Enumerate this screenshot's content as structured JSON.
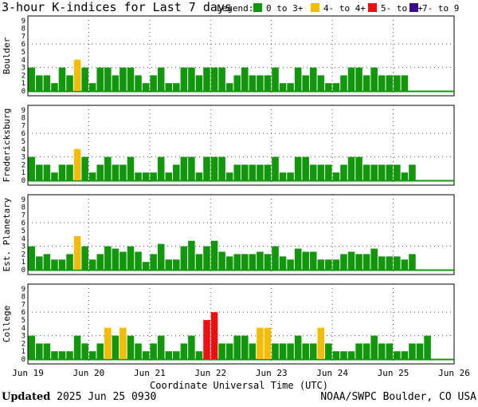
{
  "footer": {
    "updated_label": "Updated",
    "updated_value": "2025 Jun 25 0930",
    "source": "NOAA/SWPC Boulder, CO USA"
  },
  "colors": {
    "green": "#12960c",
    "yellow": "#f2bd00",
    "red": "#ee1010",
    "purple": "#3a0a8c",
    "gridline": "#555555"
  },
  "chart_data": {
    "type": "bar",
    "title": "3-hour K-indices for Last 7 days",
    "legend_label": "Legend:",
    "legend": [
      {
        "label": "0 to 3+",
        "color": "#12960c"
      },
      {
        "label": "4- to 4+",
        "color": "#f2bd00"
      },
      {
        "label": "5- to 6+",
        "color": "#ee1010"
      },
      {
        "label": "7- to 9",
        "color": "#3a0a8c"
      }
    ],
    "xlabel": "Coordinate Universal Time (UTC)",
    "x_ticks": [
      "Jun 19",
      "Jun 20",
      "Jun 21",
      "Jun 22",
      "Jun 23",
      "Jun 24",
      "Jun 25",
      "Jun 26"
    ],
    "ylim": [
      0,
      9
    ],
    "y_ticks": [
      "0",
      "1",
      "2",
      "3",
      "4",
      "5",
      "6",
      "7",
      "8",
      "9"
    ],
    "grid": true,
    "bins_per_day": 8,
    "panels": [
      {
        "name": "Boulder",
        "values": [
          3,
          2,
          2,
          1,
          3,
          2,
          4,
          3,
          1,
          3,
          3,
          2,
          3,
          3,
          2,
          1,
          2,
          3,
          1,
          1,
          3,
          3,
          2,
          3,
          3,
          3,
          1,
          2,
          3,
          2,
          2,
          2,
          3,
          1,
          1,
          3,
          2,
          3,
          2,
          1,
          1,
          2,
          3,
          3,
          2,
          3,
          2,
          2,
          2,
          2
        ]
      },
      {
        "name": "Fredericksburg",
        "values": [
          3,
          2,
          2,
          1,
          2,
          2,
          4,
          3,
          1,
          2,
          3,
          2,
          2,
          3,
          1,
          1,
          1,
          3,
          1,
          2,
          3,
          3,
          1,
          3,
          3,
          3,
          1,
          2,
          2,
          2,
          2,
          2,
          3,
          1,
          1,
          3,
          3,
          2,
          2,
          2,
          1,
          2,
          3,
          3,
          2,
          2,
          2,
          2,
          2,
          1,
          2
        ]
      },
      {
        "name": "Est. Planetary",
        "values": [
          3,
          1.7,
          2,
          1.3,
          1.3,
          2,
          4.3,
          3,
          1.3,
          2,
          3,
          2.7,
          2.3,
          3,
          2.3,
          1,
          2,
          3.3,
          1.3,
          1.3,
          3,
          3.7,
          2,
          3,
          3.7,
          2.3,
          1.7,
          2,
          2,
          2,
          2.3,
          2,
          3,
          1.7,
          1.3,
          2.7,
          2.3,
          2.3,
          1.3,
          1.3,
          1.3,
          2,
          2.3,
          2,
          2,
          2.7,
          1.7,
          1.7,
          1.7,
          1.3,
          2
        ]
      },
      {
        "name": "College",
        "values": [
          3,
          2,
          2,
          1,
          1,
          1,
          3,
          2,
          1,
          2,
          4,
          3,
          4,
          3,
          2,
          1,
          2,
          3,
          1,
          1,
          2,
          3,
          1,
          5,
          6,
          2,
          2,
          3,
          3,
          2,
          4,
          4,
          2,
          2,
          2,
          3,
          2,
          2,
          4,
          2,
          1,
          1,
          1,
          2,
          2,
          3,
          2,
          2,
          1,
          1,
          2,
          2,
          3
        ]
      }
    ]
  }
}
